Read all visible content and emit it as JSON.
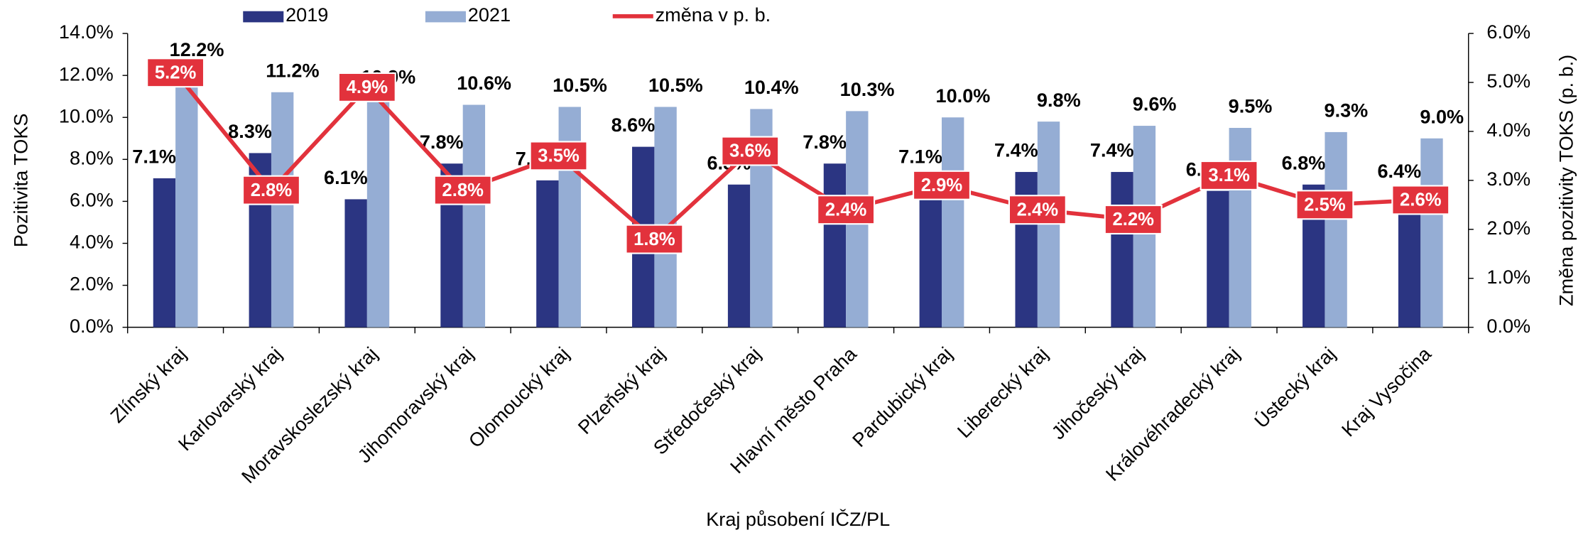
{
  "chart_data": {
    "type": "bar",
    "xlabel": "Kraj působení IČZ/PL",
    "ylabel": "Pozitivita TOKS",
    "y2label": "Změna pozitivity TOKS (p. b.)",
    "categories": [
      "Zlínský kraj",
      "Karlovarský kraj",
      "Moravskoslezský kraj",
      "Jihomoravský kraj",
      "Olomoucký kraj",
      "Plzeňský kraj",
      "Středočeský kraj",
      "Hlavní město Praha",
      "Pardubický kraj",
      "Liberecký kraj",
      "Jihočeský kraj",
      "Královéhradecký kraj",
      "Ústecký kraj",
      "Kraj Vysočina"
    ],
    "series": [
      {
        "name": "2019",
        "color": "#2b3582",
        "type": "bar",
        "values": [
          7.1,
          8.3,
          6.1,
          7.8,
          7.0,
          8.6,
          6.8,
          7.8,
          7.1,
          7.4,
          7.4,
          6.5,
          6.8,
          6.4
        ],
        "value_labels": [
          "7.1%",
          "8.3%",
          "6.1%",
          "7.8%",
          "7.0%",
          "8.6%",
          "6.8%",
          "7.8%",
          "7.1%",
          "7.4%",
          "7.4%",
          "6.5%",
          "6.8%",
          "6.4%"
        ]
      },
      {
        "name": "2021",
        "color": "#95add4",
        "type": "bar",
        "values": [
          12.2,
          11.2,
          10.9,
          10.6,
          10.5,
          10.5,
          10.4,
          10.3,
          10.0,
          9.8,
          9.6,
          9.5,
          9.3,
          9.0
        ],
        "value_labels": [
          "12.2%",
          "11.2%",
          "10.9%",
          "10.6%",
          "10.5%",
          "10.5%",
          "10.4%",
          "10.3%",
          "10.0%",
          "9.8%",
          "9.6%",
          "9.5%",
          "9.3%",
          "9.0%"
        ]
      },
      {
        "name": "změna v p. b.",
        "color": "#e2323c",
        "type": "line",
        "axis": "y2",
        "values": [
          5.2,
          2.8,
          4.9,
          2.8,
          3.5,
          1.8,
          3.6,
          2.4,
          2.9,
          2.4,
          2.2,
          3.1,
          2.5,
          2.6
        ],
        "value_labels": [
          "5.2%",
          "2.8%",
          "4.9%",
          "2.8%",
          "3.5%",
          "1.8%",
          "3.6%",
          "2.4%",
          "2.9%",
          "2.4%",
          "2.2%",
          "3.1%",
          "2.5%",
          "2.6%"
        ]
      }
    ],
    "ylim": [
      0,
      14
    ],
    "yticks": [
      {
        "value": 0,
        "label": "0.0%"
      },
      {
        "value": 2,
        "label": "2.0%"
      },
      {
        "value": 4,
        "label": "4.0%"
      },
      {
        "value": 6,
        "label": "6.0%"
      },
      {
        "value": 8,
        "label": "8.0%"
      },
      {
        "value": 10,
        "label": "10.0%"
      },
      {
        "value": 12,
        "label": "12.0%"
      },
      {
        "value": 14,
        "label": "14.0%"
      }
    ],
    "y2lim": [
      0,
      6
    ],
    "y2ticks": [
      {
        "value": 0,
        "label": "0.0%"
      },
      {
        "value": 1,
        "label": "1.0%"
      },
      {
        "value": 2,
        "label": "2.0%"
      },
      {
        "value": 3,
        "label": "3.0%"
      },
      {
        "value": 4,
        "label": "4.0%"
      },
      {
        "value": 5,
        "label": "5.0%"
      },
      {
        "value": 6,
        "label": "6.0%"
      }
    ],
    "legend": "top"
  }
}
